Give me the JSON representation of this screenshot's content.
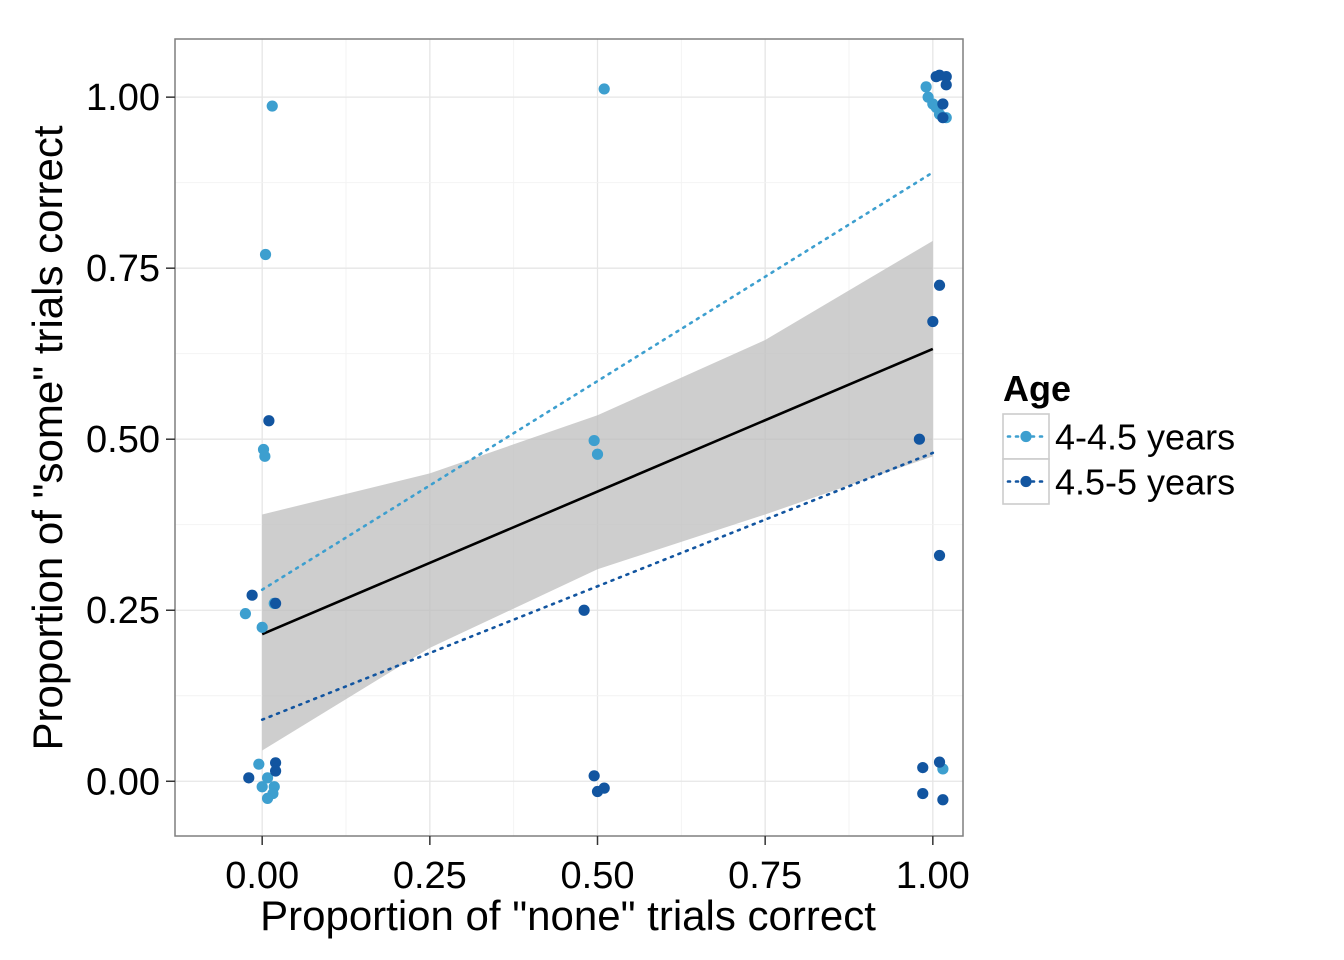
{
  "chart_data": {
    "type": "scatter",
    "xlabel": "Proportion of \"none\" trials correct",
    "ylabel": "Proportion of \"some\" trials correct",
    "xlim": [
      -0.13,
      2.14
    ],
    "ylim": [
      -0.08,
      1.085
    ],
    "x_ticks": [
      0.0,
      0.25,
      0.5,
      0.75,
      1.0
    ],
    "y_ticks": [
      0.0,
      0.25,
      0.5,
      0.75,
      1.0
    ],
    "x_tick_labels": [
      "0.00",
      "0.25",
      "0.50",
      "0.75",
      "1.00"
    ],
    "y_tick_labels": [
      "0.00",
      "0.25",
      "0.50",
      "0.75",
      "1.00"
    ],
    "grid": true,
    "background": "#ffffff",
    "legend": {
      "title": "Age",
      "placement": "right"
    },
    "series": [
      {
        "name": "4-4.5 years",
        "color": "#3d9fcf",
        "line_style": "dotted",
        "fit_line": {
          "x": [
            0.0,
            1.0
          ],
          "y": [
            0.28,
            0.89
          ]
        },
        "points": [
          {
            "x": 0.015,
            "y": 0.987
          },
          {
            "x": 0.005,
            "y": 0.77
          },
          {
            "x": 0.002,
            "y": 0.485
          },
          {
            "x": 0.004,
            "y": 0.475
          },
          {
            "x": 0.018,
            "y": 0.26
          },
          {
            "x": -0.025,
            "y": 0.245
          },
          {
            "x": 0.0,
            "y": 0.225
          },
          {
            "x": -0.005,
            "y": 0.025
          },
          {
            "x": 0.008,
            "y": 0.005
          },
          {
            "x": 0.0,
            "y": -0.008
          },
          {
            "x": 0.018,
            "y": -0.008
          },
          {
            "x": 0.016,
            "y": -0.018
          },
          {
            "x": 0.008,
            "y": -0.025
          },
          {
            "x": 0.51,
            "y": 1.012
          },
          {
            "x": 0.495,
            "y": 0.498
          },
          {
            "x": 0.5,
            "y": 0.478
          },
          {
            "x": 0.99,
            "y": 1.015
          },
          {
            "x": 0.993,
            "y": 1.0
          },
          {
            "x": 1.0,
            "y": 0.99
          },
          {
            "x": 1.005,
            "y": 0.985
          },
          {
            "x": 1.01,
            "y": 0.975
          },
          {
            "x": 1.02,
            "y": 0.97
          },
          {
            "x": 1.015,
            "y": 0.018
          }
        ]
      },
      {
        "name": "4.5-5 years",
        "color": "#1255a0",
        "line_style": "dotted",
        "fit_line": {
          "x": [
            0.0,
            1.0
          ],
          "y": [
            0.09,
            0.48
          ]
        },
        "points": [
          {
            "x": 0.01,
            "y": 0.527
          },
          {
            "x": -0.015,
            "y": 0.272
          },
          {
            "x": 0.02,
            "y": 0.26
          },
          {
            "x": 0.02,
            "y": 0.027
          },
          {
            "x": 0.02,
            "y": 0.015
          },
          {
            "x": -0.02,
            "y": 0.005
          },
          {
            "x": 0.48,
            "y": 0.25
          },
          {
            "x": 0.495,
            "y": 0.008
          },
          {
            "x": 0.51,
            "y": -0.01
          },
          {
            "x": 0.5,
            "y": -0.015
          },
          {
            "x": 1.005,
            "y": 1.03
          },
          {
            "x": 1.01,
            "y": 1.032
          },
          {
            "x": 1.02,
            "y": 1.03
          },
          {
            "x": 1.02,
            "y": 1.018
          },
          {
            "x": 1.015,
            "y": 0.99
          },
          {
            "x": 1.015,
            "y": 0.97
          },
          {
            "x": 1.01,
            "y": 0.725
          },
          {
            "x": 1.0,
            "y": 0.672
          },
          {
            "x": 0.98,
            "y": 0.5
          },
          {
            "x": 1.01,
            "y": 0.33
          },
          {
            "x": 1.01,
            "y": 0.028
          },
          {
            "x": 0.985,
            "y": 0.02
          },
          {
            "x": 0.985,
            "y": -0.018
          },
          {
            "x": 1.015,
            "y": -0.027
          }
        ]
      }
    ],
    "overall_fit": {
      "color": "#000000",
      "x": [
        0.0,
        1.0
      ],
      "y": [
        0.215,
        0.632
      ],
      "ribbon_color": "#bdbdbd",
      "ribbon": {
        "x": [
          0.0,
          0.25,
          0.5,
          0.75,
          1.0
        ],
        "upper": [
          0.39,
          0.45,
          0.535,
          0.645,
          0.79
        ],
        "lower": [
          0.045,
          0.195,
          0.31,
          0.39,
          0.475
        ]
      }
    }
  }
}
